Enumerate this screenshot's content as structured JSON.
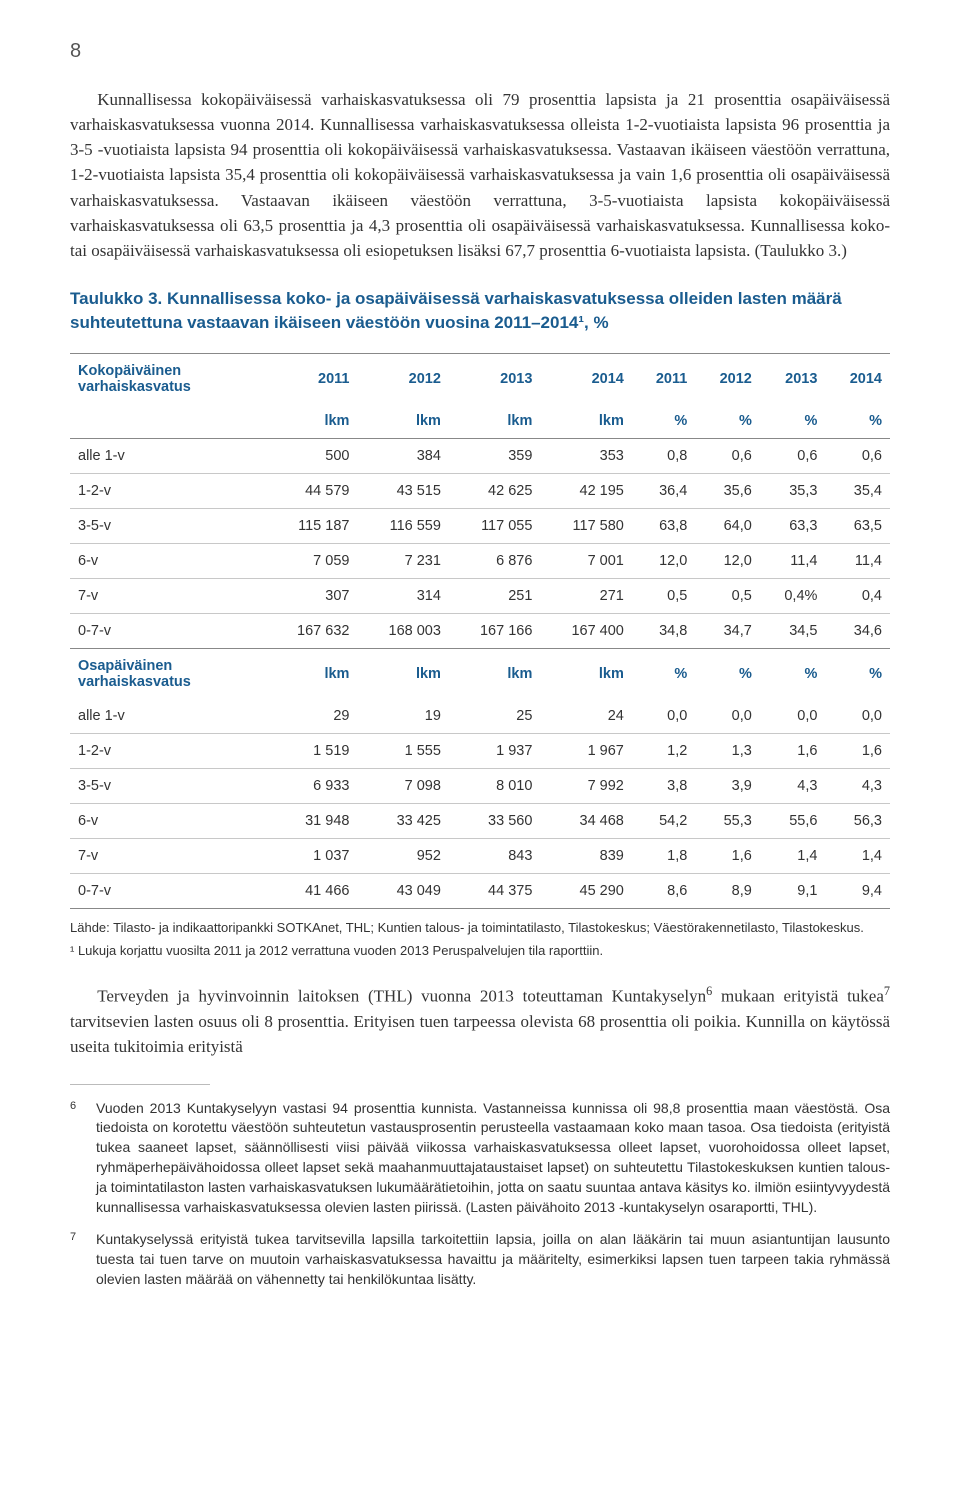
{
  "pageNumber": "8",
  "paragraph1": "Kunnallisessa kokopäiväisessä varhaiskasvatuksessa oli 79 prosenttia lapsista ja 21 prosenttia osapäiväisessä varhaiskasvatuksessa vuonna 2014. Kunnallisessa varhaiskasvatuksessa olleista 1-2-vuotiaista lapsista 96 prosenttia ja 3-5 -vuotiaista lapsista 94 prosenttia oli kokopäiväisessä varhaiskasvatuksessa. Vastaavan ikäiseen väestöön verrattuna, 1-2-vuotiaista lapsista 35,4 prosenttia oli kokopäiväisessä varhaiskasvatuksessa ja vain 1,6 prosenttia oli osapäiväisessä varhaiskasvatuksessa. Vastaavan ikäiseen väestöön verrattuna, 3-5-vuotiaista lapsista kokopäiväisessä varhaiskasvatuksessa oli 63,5 prosenttia ja 4,3 prosenttia oli osapäiväisessä varhaiskasvatuksessa. Kunnallisessa koko- tai osapäiväisessä varhaiskasvatuksessa oli esiopetuksen lisäksi 67,7 prosenttia 6-vuotiaista lapsista. (Taulukko 3.)",
  "tableTitle": "Taulukko 3. Kunnallisessa koko- ja osapäiväisessä varhaiskasvatuksessa olleiden lasten määrä suhteutettuna vastaavan ikäiseen väestöön vuosina 2011–2014¹, %",
  "table": {
    "section1Label": "Kokopäiväinen varhaiskasvatus",
    "section2Label": "Osapäiväinen varhaiskasvatus",
    "yearCols": [
      "2011",
      "2012",
      "2013",
      "2014",
      "2011",
      "2012",
      "2013",
      "2014"
    ],
    "unitCols": [
      "lkm",
      "lkm",
      "lkm",
      "lkm",
      "%",
      "%",
      "%",
      "%"
    ],
    "section1Rows": [
      {
        "label": "alle 1-v",
        "cells": [
          "500",
          "384",
          "359",
          "353",
          "0,8",
          "0,6",
          "0,6",
          "0,6"
        ]
      },
      {
        "label": "1-2-v",
        "cells": [
          "44 579",
          "43 515",
          "42 625",
          "42 195",
          "36,4",
          "35,6",
          "35,3",
          "35,4"
        ]
      },
      {
        "label": "3-5-v",
        "cells": [
          "115 187",
          "116 559",
          "117 055",
          "117 580",
          "63,8",
          "64,0",
          "63,3",
          "63,5"
        ]
      },
      {
        "label": "6-v",
        "cells": [
          "7 059",
          "7 231",
          "6 876",
          "7 001",
          "12,0",
          "12,0",
          "11,4",
          "11,4"
        ]
      },
      {
        "label": "7-v",
        "cells": [
          "307",
          "314",
          "251",
          "271",
          "0,5",
          "0,5",
          "0,4%",
          "0,4"
        ]
      },
      {
        "label": "0-7-v",
        "cells": [
          "167 632",
          "168 003",
          "167 166",
          "167 400",
          "34,8",
          "34,7",
          "34,5",
          "34,6"
        ]
      }
    ],
    "section2Rows": [
      {
        "label": "alle 1-v",
        "cells": [
          "29",
          "19",
          "25",
          "24",
          "0,0",
          "0,0",
          "0,0",
          "0,0"
        ]
      },
      {
        "label": "1-2-v",
        "cells": [
          "1 519",
          "1 555",
          "1 937",
          "1 967",
          "1,2",
          "1,3",
          "1,6",
          "1,6"
        ]
      },
      {
        "label": "3-5-v",
        "cells": [
          "6 933",
          "7 098",
          "8 010",
          "7 992",
          "3,8",
          "3,9",
          "4,3",
          "4,3"
        ]
      },
      {
        "label": "6-v",
        "cells": [
          "31 948",
          "33 425",
          "33 560",
          "34 468",
          "54,2",
          "55,3",
          "55,6",
          "56,3"
        ]
      },
      {
        "label": "7-v",
        "cells": [
          "1 037",
          "952",
          "843",
          "839",
          "1,8",
          "1,6",
          "1,4",
          "1,4"
        ]
      },
      {
        "label": "0-7-v",
        "cells": [
          "41 466",
          "43 049",
          "44 375",
          "45 290",
          "8,6",
          "8,9",
          "9,1",
          "9,4"
        ]
      }
    ]
  },
  "tableFootnote1": "Lähde: Tilasto- ja indikaattoripankki SOTKAnet, THL; Kuntien talous- ja toimintatilasto, Tilastokeskus; Väestörakennetilasto, Tilastokeskus.",
  "tableFootnote2": "¹ Lukuja korjattu vuosilta 2011 ja 2012 verrattuna vuoden 2013 Peruspalvelujen tila raporttiin.",
  "paragraph2_a": "Terveyden ja hyvinvoinnin laitoksen (THL) vuonna 2013 toteuttaman Kuntakyselyn",
  "paragraph2_b": " mukaan erityistä tukea",
  "paragraph2_c": " tarvitsevien lasten osuus oli 8 prosenttia. Erityisen tuen tarpeessa olevista 68 prosenttia oli poikia. Kunnilla on käytössä useita tukitoimia erityistä",
  "footnote6": "Vuoden 2013 Kuntakyselyyn vastasi 94 prosenttia kunnista. Vastanneissa kunnissa oli 98,8 prosenttia maan väestöstä. Osa tiedoista on korotettu väestöön suhteutetun vastausprosentin perusteella vastaamaan koko maan tasoa. Osa tiedoista (erityistä tukea saaneet lapset, säännöllisesti viisi päivää viikossa varhaiskasvatuksessa olleet lapset, vuorohoidossa olleet lapset, ryhmäperhepäivähoidossa olleet lapset sekä maahanmuuttajataustaiset lapset) on suhteutettu Tilastokeskuksen kuntien talous- ja toimintatilaston lasten varhaiskasvatuksen lukumäärätietoihin, jotta on saatu suuntaa antava käsitys ko. ilmiön esiintyvyydestä kunnallisessa varhaiskasvatuksessa olevien lasten piirissä. (Lasten päivähoito 2013 -kuntakyselyn osaraportti, THL).",
  "footnote7": "Kuntakyselyssä erityistä tukea tarvitsevilla lapsilla tarkoitettiin lapsia, joilla on alan lääkärin tai muun asiantuntijan lausunto tuesta tai tuen tarve on muutoin varhaiskasvatuksessa havaittu ja määritelty, esimerkiksi lapsen tuen tarpeen takia ryhmässä olevien lasten määrää on vähennetty tai henkilökuntaa lisätty.",
  "colors": {
    "accent": "#1a5c8f",
    "body": "#333333",
    "borderStrong": "#888888",
    "borderLight": "#c8c8c8",
    "background": "#ffffff"
  }
}
